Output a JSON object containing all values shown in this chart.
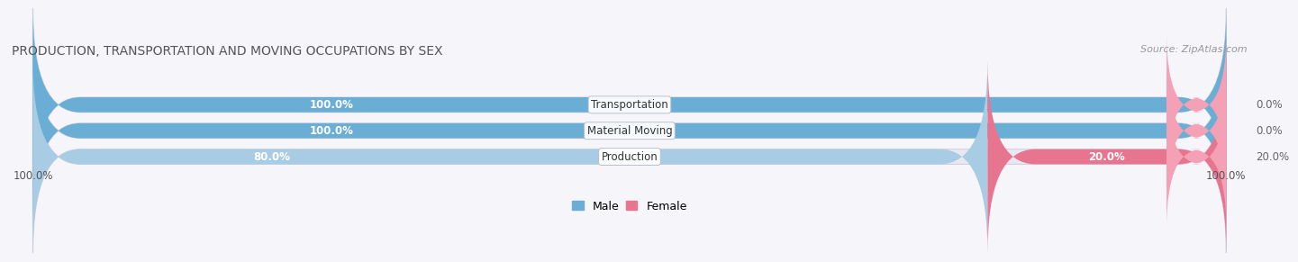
{
  "title": "PRODUCTION, TRANSPORTATION AND MOVING OCCUPATIONS BY SEX",
  "source": "Source: ZipAtlas.com",
  "categories": [
    "Transportation",
    "Material Moving",
    "Production"
  ],
  "male_values": [
    100.0,
    100.0,
    80.0
  ],
  "female_values": [
    0.0,
    0.0,
    20.0
  ],
  "male_color_full": "#6aaed6",
  "male_color_light": "#a8cce4",
  "female_color_stub": "#f4a0b5",
  "female_color_full": "#e8758f",
  "bg_color": "#f0f0f8",
  "bar_bg_color": "#e8e8f0",
  "fig_bg": "#f5f5fa",
  "left_label": "100.0%",
  "right_label": "100.0%",
  "legend_male": "Male",
  "legend_female": "Female",
  "title_fontsize": 10,
  "source_fontsize": 8,
  "bar_label_fontsize": 8.5,
  "cat_label_fontsize": 8.5
}
